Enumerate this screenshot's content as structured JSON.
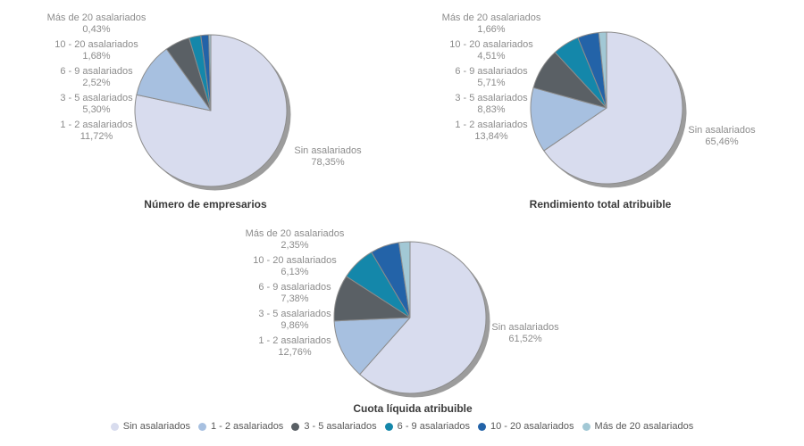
{
  "page": {
    "background": "#ffffff"
  },
  "palette": {
    "slice_stroke": "#8c8c8c",
    "pie_shadow": "#9c9c9c",
    "label_text": "#8c8c8c",
    "title_text": "#3a3a3a",
    "legend_text": "#595959"
  },
  "legend": {
    "items": [
      {
        "label": "Sin asalariados",
        "color": "#d8dcee"
      },
      {
        "label": "1 - 2 asalariados",
        "color": "#a7c0e0"
      },
      {
        "label": "3 - 5 asalariados",
        "color": "#5a6065"
      },
      {
        "label": "6 - 9 asalariados",
        "color": "#1487aa"
      },
      {
        "label": "10 - 20 asalariados",
        "color": "#2363a8"
      },
      {
        "label": "Más de 20 asalariados",
        "color": "#a2c8d5"
      }
    ]
  },
  "chart_data": [
    {
      "type": "pie",
      "title": "Número de empresarios",
      "categories": [
        "Sin asalariados",
        "1 - 2 asalariados",
        "3 - 5 asalariados",
        "6 - 9 asalariados",
        "10 - 20 asalariados",
        "Más de 20 asalariados"
      ],
      "values": [
        78.35,
        11.72,
        5.3,
        2.52,
        1.68,
        0.43
      ],
      "value_labels": [
        "78,35%",
        "11,72%",
        "5,30%",
        "2,52%",
        "1,68%",
        "0,43%"
      ],
      "colors": [
        "#d8dcee",
        "#a7c0e0",
        "#5a6065",
        "#1487aa",
        "#2363a8",
        "#a2c8d5"
      ],
      "start_angle_deg": 0,
      "direction": "clockwise",
      "legend_position": "bottom-shared"
    },
    {
      "type": "pie",
      "title": "Rendimiento total atribuible",
      "categories": [
        "Sin asalariados",
        "1 - 2 asalariados",
        "3 - 5 asalariados",
        "6 - 9 asalariados",
        "10 - 20 asalariados",
        "Más de 20 asalariados"
      ],
      "values": [
        65.46,
        13.84,
        8.83,
        5.71,
        4.51,
        1.66
      ],
      "value_labels": [
        "65,46%",
        "13,84%",
        "8,83%",
        "5,71%",
        "4,51%",
        "1,66%"
      ],
      "colors": [
        "#d8dcee",
        "#a7c0e0",
        "#5a6065",
        "#1487aa",
        "#2363a8",
        "#a2c8d5"
      ],
      "start_angle_deg": 0,
      "direction": "clockwise",
      "legend_position": "bottom-shared"
    },
    {
      "type": "pie",
      "title": "Cuota líquida atribuible",
      "categories": [
        "Sin asalariados",
        "1 - 2 asalariados",
        "3 - 5 asalariados",
        "6 - 9 asalariados",
        "10 - 20 asalariados",
        "Más de 20 asalariados"
      ],
      "values": [
        61.52,
        12.76,
        9.86,
        7.38,
        6.13,
        2.35
      ],
      "value_labels": [
        "61,52%",
        "12,76%",
        "9,86%",
        "7,38%",
        "6,13%",
        "2,35%"
      ],
      "colors": [
        "#d8dcee",
        "#a7c0e0",
        "#5a6065",
        "#1487aa",
        "#2363a8",
        "#a2c8d5"
      ],
      "start_angle_deg": 0,
      "direction": "clockwise",
      "legend_position": "bottom-shared"
    }
  ]
}
